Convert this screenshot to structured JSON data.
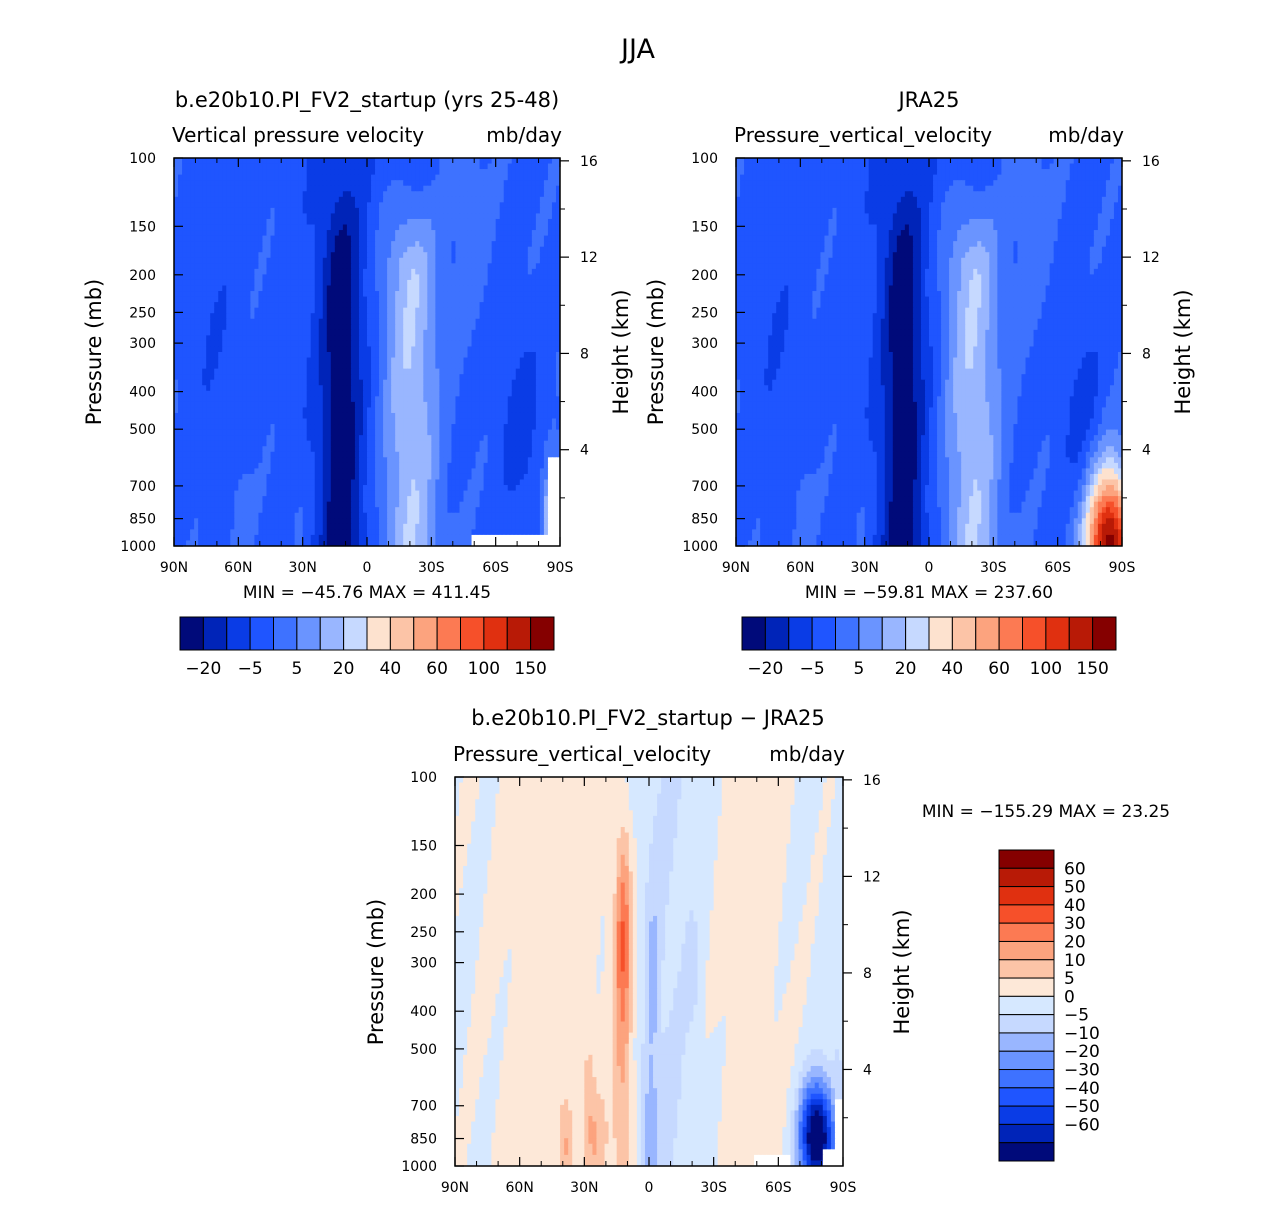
{
  "page_title": "JJA",
  "colors": {
    "abs_palette": [
      "#000a7a",
      "#0024b8",
      "#0a3ce6",
      "#1f55ff",
      "#3e72ff",
      "#6a94ff",
      "#99b6ff",
      "#c6d9ff",
      "#fde2cf",
      "#fcc4a7",
      "#fca37e",
      "#fc7a53",
      "#f6502a",
      "#e03010",
      "#b81a06",
      "#850000"
    ],
    "diff_palette": [
      "#000a7a",
      "#0024b8",
      "#0a3ce6",
      "#1f55ff",
      "#3e72ff",
      "#6a94ff",
      "#99b6ff",
      "#c6d9ff",
      "#d6e8ff",
      "#fde8d8",
      "#fcc4a7",
      "#fca37e",
      "#fc7a53",
      "#f6502a",
      "#e03010",
      "#b81a06",
      "#850000"
    ],
    "missing": "#ffffff"
  },
  "chart_data": [
    {
      "type": "heatmap",
      "name": "model",
      "title": "b.e20b10.PI_FV2_startup (yrs 25-48)",
      "subtitle_left": "Vertical pressure velocity",
      "subtitle_right": "mb/day",
      "ylabel": "Pressure (mb)",
      "y2label": "Height (km)",
      "minmax": "MIN = −45.76   MAX = 411.45",
      "x_ticks": [
        "90N",
        "60N",
        "30N",
        "0",
        "30S",
        "60S",
        "90S"
      ],
      "x_tick_values": [
        90,
        60,
        30,
        0,
        -30,
        -60,
        -90
      ],
      "y_ticks": [
        "100",
        "150",
        "200",
        "250",
        "300",
        "400",
        "500",
        "700",
        "850",
        "1000"
      ],
      "y_tick_values": [
        100,
        150,
        200,
        250,
        300,
        400,
        500,
        700,
        850,
        1000
      ],
      "y2_ticks": [
        "16",
        "12",
        "8",
        "4"
      ],
      "y2_tick_values": [
        16,
        12,
        8,
        4
      ],
      "colorbar_labels": [
        "−20",
        "−5",
        "5",
        "20",
        "40",
        "60",
        "100",
        "150"
      ],
      "xlim": [
        90,
        -90
      ],
      "ylim": [
        1000,
        100
      ],
      "red_corner": "weak"
    },
    {
      "type": "heatmap",
      "name": "obs",
      "title": "JRA25",
      "subtitle_left": "Pressure_vertical_velocity",
      "subtitle_right": "mb/day",
      "ylabel": "Pressure (mb)",
      "y2label": "Height (km)",
      "minmax": "MIN = −59.81   MAX = 237.60",
      "x_ticks": [
        "90N",
        "60N",
        "30N",
        "0",
        "30S",
        "60S",
        "90S"
      ],
      "x_tick_values": [
        90,
        60,
        30,
        0,
        -30,
        -60,
        -90
      ],
      "y_ticks": [
        "100",
        "150",
        "200",
        "250",
        "300",
        "400",
        "500",
        "700",
        "850",
        "1000"
      ],
      "y_tick_values": [
        100,
        150,
        200,
        250,
        300,
        400,
        500,
        700,
        850,
        1000
      ],
      "y2_ticks": [
        "16",
        "12",
        "8",
        "4"
      ],
      "y2_tick_values": [
        16,
        12,
        8,
        4
      ],
      "colorbar_labels": [
        "−20",
        "−5",
        "5",
        "20",
        "40",
        "60",
        "100",
        "150"
      ],
      "xlim": [
        90,
        -90
      ],
      "ylim": [
        1000,
        100
      ],
      "red_corner": "strong"
    },
    {
      "type": "heatmap",
      "name": "diff",
      "title": "b.e20b10.PI_FV2_startup − JRA25",
      "subtitle_left": "Pressure_vertical_velocity",
      "subtitle_right": "mb/day",
      "ylabel": "Pressure (mb)",
      "y2label": "Height (km)",
      "minmax": "MIN = −155.29   MAX =   23.25",
      "x_ticks": [
        "90N",
        "60N",
        "30N",
        "0",
        "30S",
        "60S",
        "90S"
      ],
      "x_tick_values": [
        90,
        60,
        30,
        0,
        -30,
        -60,
        -90
      ],
      "y_ticks": [
        "100",
        "150",
        "200",
        "250",
        "300",
        "400",
        "500",
        "700",
        "850",
        "1000"
      ],
      "y_tick_values": [
        100,
        150,
        200,
        250,
        300,
        400,
        500,
        700,
        850,
        1000
      ],
      "y2_ticks": [
        "16",
        "12",
        "8",
        "4"
      ],
      "y2_tick_values": [
        16,
        12,
        8,
        4
      ],
      "colorbar_labels": [
        "60",
        "50",
        "40",
        "30",
        "20",
        "10",
        "5",
        "0",
        "−5",
        "−10",
        "−20",
        "−30",
        "−40",
        "−50",
        "−60"
      ],
      "xlim": [
        90,
        -90
      ],
      "ylim": [
        1000,
        100
      ]
    }
  ]
}
